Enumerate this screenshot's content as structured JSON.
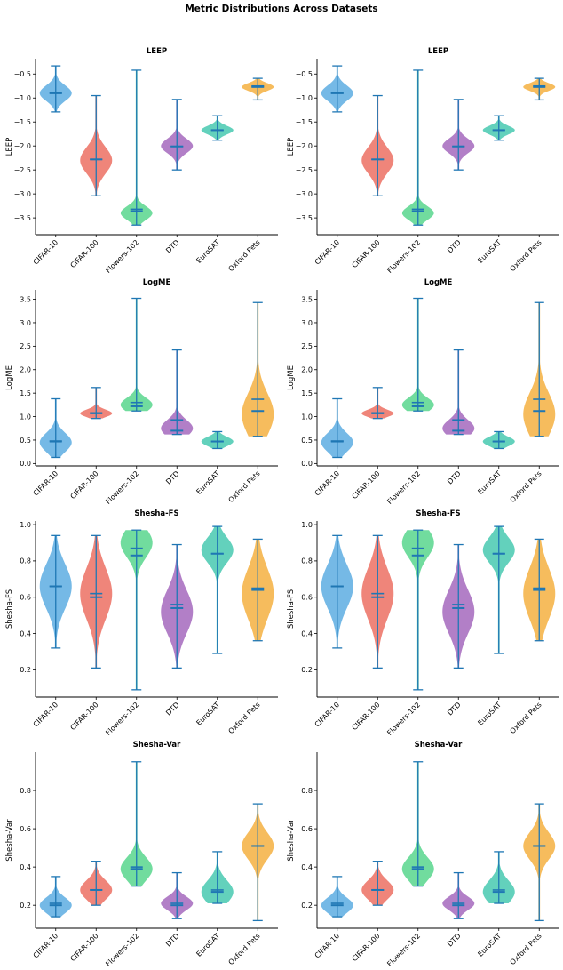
{
  "figure_title": "Metric Distributions Across Datasets",
  "colors": {
    "CIFAR-10": "#5dade2",
    "CIFAR-100": "#ec7063",
    "Flowers-102": "#58d68d",
    "DTD": "#a569bd",
    "EuroSAT": "#48c9b0",
    "Oxford Pets": "#f5b041",
    "line": "#1f77b4"
  },
  "chart_data": [
    {
      "type": "violin",
      "panel": "left",
      "title": "LEEP",
      "ylabel": "LEEP",
      "categories": [
        "CIFAR-10",
        "CIFAR-100",
        "Flowers-102",
        "DTD",
        "EuroSAT",
        "Oxford Pets"
      ],
      "ylim": [
        -3.85,
        -0.18
      ],
      "yticks": [
        -3.5,
        -3.0,
        -2.5,
        -2.0,
        -1.5,
        -1.0,
        -0.5
      ],
      "ytick_labels": [
        "−3.5",
        "−3.0",
        "−2.5",
        "−2.0",
        "−1.5",
        "−1.0",
        "−0.5"
      ],
      "series": [
        {
          "name": "CIFAR-10",
          "min": -1.29,
          "max": -0.33,
          "median": -0.9,
          "mean": -0.9,
          "mode": -0.9,
          "spread": 0.16
        },
        {
          "name": "CIFAR-100",
          "min": -3.04,
          "max": -0.95,
          "median": -2.28,
          "mean": -2.28,
          "mode": -2.3,
          "spread": 0.27
        },
        {
          "name": "Flowers-102",
          "min": -3.65,
          "max": -0.42,
          "median": -3.36,
          "mean": -3.32,
          "mode": -3.4,
          "spread": 0.14
        },
        {
          "name": "DTD",
          "min": -2.5,
          "max": -1.03,
          "median": -2.01,
          "mean": -2.01,
          "mode": -2.0,
          "spread": 0.15
        },
        {
          "name": "EuroSAT",
          "min": -1.88,
          "max": -1.37,
          "median": -1.67,
          "mean": -1.67,
          "mode": -1.67,
          "spread": 0.09
        },
        {
          "name": "Oxford Pets",
          "min": -1.04,
          "max": -0.59,
          "median": -0.77,
          "mean": -0.75,
          "mode": -0.77,
          "spread": 0.08
        }
      ]
    },
    {
      "type": "violin",
      "panel": "right",
      "title": "LEEP",
      "ylabel": "LEEP",
      "categories": [
        "CIFAR-10",
        "CIFAR-100",
        "Flowers-102",
        "DTD",
        "EuroSAT",
        "Oxford Pets"
      ],
      "ylim": [
        -3.85,
        -0.18
      ],
      "yticks": [
        -3.5,
        -3.0,
        -2.5,
        -2.0,
        -1.5,
        -1.0,
        -0.5
      ],
      "ytick_labels": [
        "−3.5",
        "−3.0",
        "−2.5",
        "−2.0",
        "−1.5",
        "−1.0",
        "−0.5"
      ],
      "series": [
        {
          "name": "CIFAR-10",
          "min": -1.29,
          "max": -0.33,
          "median": -0.9,
          "mean": -0.9,
          "mode": -0.9,
          "spread": 0.16
        },
        {
          "name": "CIFAR-100",
          "min": -3.04,
          "max": -0.95,
          "median": -2.28,
          "mean": -2.28,
          "mode": -2.3,
          "spread": 0.27
        },
        {
          "name": "Flowers-102",
          "min": -3.65,
          "max": -0.42,
          "median": -3.36,
          "mean": -3.32,
          "mode": -3.4,
          "spread": 0.14
        },
        {
          "name": "DTD",
          "min": -2.5,
          "max": -1.03,
          "median": -2.01,
          "mean": -2.01,
          "mode": -2.0,
          "spread": 0.15
        },
        {
          "name": "EuroSAT",
          "min": -1.88,
          "max": -1.37,
          "median": -1.67,
          "mean": -1.67,
          "mode": -1.67,
          "spread": 0.09
        },
        {
          "name": "Oxford Pets",
          "min": -1.04,
          "max": -0.59,
          "median": -0.77,
          "mean": -0.75,
          "mode": -0.77,
          "spread": 0.08
        }
      ]
    },
    {
      "type": "violin",
      "panel": "left",
      "title": "LogME",
      "ylabel": "LogME",
      "categories": [
        "CIFAR-10",
        "CIFAR-100",
        "Flowers-102",
        "DTD",
        "EuroSAT",
        "Oxford Pets"
      ],
      "ylim": [
        -0.05,
        3.7
      ],
      "yticks": [
        0.0,
        0.5,
        1.0,
        1.5,
        2.0,
        2.5,
        3.0,
        3.5
      ],
      "ytick_labels": [
        "0.0",
        "0.5",
        "1.0",
        "1.5",
        "2.0",
        "2.5",
        "3.0",
        "3.5"
      ],
      "series": [
        {
          "name": "CIFAR-10",
          "min": 0.13,
          "max": 1.38,
          "median": 0.47,
          "mean": 0.48,
          "mode": 0.45,
          "spread": 0.2
        },
        {
          "name": "CIFAR-100",
          "min": 0.96,
          "max": 1.62,
          "median": 1.07,
          "mean": 1.08,
          "mode": 1.07,
          "spread": 0.08
        },
        {
          "name": "Flowers-102",
          "min": 1.12,
          "max": 3.52,
          "median": 1.22,
          "mean": 1.3,
          "mode": 1.25,
          "spread": 0.15
        },
        {
          "name": "DTD",
          "min": 0.62,
          "max": 2.42,
          "median": 0.7,
          "mean": 0.93,
          "mode": 0.75,
          "spread": 0.18
        },
        {
          "name": "EuroSAT",
          "min": 0.32,
          "max": 0.68,
          "median": 0.47,
          "mean": 0.47,
          "mode": 0.47,
          "spread": 0.1
        },
        {
          "name": "Oxford Pets",
          "min": 0.58,
          "max": 3.43,
          "median": 1.12,
          "mean": 1.37,
          "mode": 1.05,
          "spread": 0.45
        }
      ]
    },
    {
      "type": "violin",
      "panel": "right",
      "title": "LogME",
      "ylabel": "LogME",
      "categories": [
        "CIFAR-10",
        "CIFAR-100",
        "Flowers-102",
        "DTD",
        "EuroSAT",
        "Oxford Pets"
      ],
      "ylim": [
        -0.05,
        3.7
      ],
      "yticks": [
        0.0,
        0.5,
        1.0,
        1.5,
        2.0,
        2.5,
        3.0,
        3.5
      ],
      "ytick_labels": [
        "0.0",
        "0.5",
        "1.0",
        "1.5",
        "2.0",
        "2.5",
        "3.0",
        "3.5"
      ],
      "series": [
        {
          "name": "CIFAR-10",
          "min": 0.13,
          "max": 1.38,
          "median": 0.47,
          "mean": 0.48,
          "mode": 0.45,
          "spread": 0.2
        },
        {
          "name": "CIFAR-100",
          "min": 0.96,
          "max": 1.62,
          "median": 1.07,
          "mean": 1.08,
          "mode": 1.07,
          "spread": 0.08
        },
        {
          "name": "Flowers-102",
          "min": 1.12,
          "max": 3.52,
          "median": 1.22,
          "mean": 1.3,
          "mode": 1.25,
          "spread": 0.15
        },
        {
          "name": "DTD",
          "min": 0.62,
          "max": 2.42,
          "median": 0.7,
          "mean": 0.93,
          "mode": 0.75,
          "spread": 0.18
        },
        {
          "name": "EuroSAT",
          "min": 0.32,
          "max": 0.68,
          "median": 0.47,
          "mean": 0.47,
          "mode": 0.47,
          "spread": 0.1
        },
        {
          "name": "Oxford Pets",
          "min": 0.58,
          "max": 3.43,
          "median": 1.12,
          "mean": 1.37,
          "mode": 1.05,
          "spread": 0.45
        }
      ]
    },
    {
      "type": "violin",
      "panel": "left",
      "title": "Shesha-FS",
      "ylabel": "Shesha-FS",
      "categories": [
        "CIFAR-10",
        "CIFAR-100",
        "Flowers-102",
        "DTD",
        "EuroSAT",
        "Oxford Pets"
      ],
      "ylim": [
        0.05,
        1.02
      ],
      "yticks": [
        0.2,
        0.4,
        0.6,
        0.8,
        1.0
      ],
      "ytick_labels": [
        "0.2",
        "0.4",
        "0.6",
        "0.8",
        "1.0"
      ],
      "series": [
        {
          "name": "CIFAR-10",
          "min": 0.32,
          "max": 0.94,
          "median": 0.66,
          "mean": 0.66,
          "mode": 0.66,
          "spread": 0.12
        },
        {
          "name": "CIFAR-100",
          "min": 0.21,
          "max": 0.94,
          "median": 0.6,
          "mean": 0.62,
          "mode": 0.62,
          "spread": 0.14
        },
        {
          "name": "Flowers-102",
          "min": 0.09,
          "max": 0.97,
          "median": 0.83,
          "mean": 0.87,
          "mode": 0.9,
          "spread": 0.08
        },
        {
          "name": "DTD",
          "min": 0.21,
          "max": 0.89,
          "median": 0.54,
          "mean": 0.56,
          "mode": 0.52,
          "spread": 0.12
        },
        {
          "name": "EuroSAT",
          "min": 0.29,
          "max": 0.99,
          "median": 0.84,
          "mean": 0.84,
          "mode": 0.86,
          "spread": 0.07
        },
        {
          "name": "Oxford Pets",
          "min": 0.36,
          "max": 0.92,
          "median": 0.64,
          "mean": 0.65,
          "mode": 0.62,
          "spread": 0.14
        }
      ]
    },
    {
      "type": "violin",
      "panel": "right",
      "title": "Shesha-FS",
      "ylabel": "Shesha-FS",
      "categories": [
        "CIFAR-10",
        "CIFAR-100",
        "Flowers-102",
        "DTD",
        "EuroSAT",
        "Oxford Pets"
      ],
      "ylim": [
        0.05,
        1.02
      ],
      "yticks": [
        0.2,
        0.4,
        0.6,
        0.8,
        1.0
      ],
      "ytick_labels": [
        "0.2",
        "0.4",
        "0.6",
        "0.8",
        "1.0"
      ],
      "series": [
        {
          "name": "CIFAR-10",
          "min": 0.32,
          "max": 0.94,
          "median": 0.66,
          "mean": 0.66,
          "mode": 0.66,
          "spread": 0.12
        },
        {
          "name": "CIFAR-100",
          "min": 0.21,
          "max": 0.94,
          "median": 0.6,
          "mean": 0.62,
          "mode": 0.62,
          "spread": 0.14
        },
        {
          "name": "Flowers-102",
          "min": 0.09,
          "max": 0.97,
          "median": 0.83,
          "mean": 0.87,
          "mode": 0.9,
          "spread": 0.08
        },
        {
          "name": "DTD",
          "min": 0.21,
          "max": 0.89,
          "median": 0.54,
          "mean": 0.56,
          "mode": 0.52,
          "spread": 0.12
        },
        {
          "name": "EuroSAT",
          "min": 0.29,
          "max": 0.99,
          "median": 0.84,
          "mean": 0.84,
          "mode": 0.86,
          "spread": 0.07
        },
        {
          "name": "Oxford Pets",
          "min": 0.36,
          "max": 0.92,
          "median": 0.64,
          "mean": 0.65,
          "mode": 0.62,
          "spread": 0.14
        }
      ]
    },
    {
      "type": "violin",
      "panel": "left",
      "title": "Shesha-Var",
      "ylabel": "Shesha-Var",
      "categories": [
        "CIFAR-10",
        "CIFAR-100",
        "Flowers-102",
        "DTD",
        "EuroSAT",
        "Oxford Pets"
      ],
      "ylim": [
        0.08,
        1.0
      ],
      "yticks": [
        0.2,
        0.4,
        0.6,
        0.8
      ],
      "ytick_labels": [
        "0.2",
        "0.4",
        "0.6",
        "0.8"
      ],
      "series": [
        {
          "name": "CIFAR-10",
          "min": 0.14,
          "max": 0.35,
          "median": 0.2,
          "mean": 0.21,
          "mode": 0.2,
          "spread": 0.04
        },
        {
          "name": "CIFAR-100",
          "min": 0.2,
          "max": 0.43,
          "median": 0.28,
          "mean": 0.28,
          "mode": 0.28,
          "spread": 0.05
        },
        {
          "name": "Flowers-102",
          "min": 0.3,
          "max": 0.95,
          "median": 0.39,
          "mean": 0.4,
          "mode": 0.39,
          "spread": 0.06
        },
        {
          "name": "DTD",
          "min": 0.13,
          "max": 0.37,
          "median": 0.2,
          "mean": 0.21,
          "mode": 0.21,
          "spread": 0.035
        },
        {
          "name": "EuroSAT",
          "min": 0.21,
          "max": 0.48,
          "median": 0.27,
          "mean": 0.28,
          "mode": 0.27,
          "spread": 0.06
        },
        {
          "name": "Oxford Pets",
          "min": 0.12,
          "max": 0.73,
          "median": 0.51,
          "mean": 0.51,
          "mode": 0.51,
          "spread": 0.07
        }
      ]
    },
    {
      "type": "violin",
      "panel": "right",
      "title": "Shesha-Var",
      "ylabel": "Shesha-Var",
      "categories": [
        "CIFAR-10",
        "CIFAR-100",
        "Flowers-102",
        "DTD",
        "EuroSAT",
        "Oxford Pets"
      ],
      "ylim": [
        0.08,
        1.0
      ],
      "yticks": [
        0.2,
        0.4,
        0.6,
        0.8
      ],
      "ytick_labels": [
        "0.2",
        "0.4",
        "0.6",
        "0.8"
      ],
      "series": [
        {
          "name": "CIFAR-10",
          "min": 0.14,
          "max": 0.35,
          "median": 0.2,
          "mean": 0.21,
          "mode": 0.2,
          "spread": 0.04
        },
        {
          "name": "CIFAR-100",
          "min": 0.2,
          "max": 0.43,
          "median": 0.28,
          "mean": 0.28,
          "mode": 0.28,
          "spread": 0.05
        },
        {
          "name": "Flowers-102",
          "min": 0.3,
          "max": 0.95,
          "median": 0.39,
          "mean": 0.4,
          "mode": 0.39,
          "spread": 0.06
        },
        {
          "name": "DTD",
          "min": 0.13,
          "max": 0.37,
          "median": 0.2,
          "mean": 0.21,
          "mode": 0.21,
          "spread": 0.035
        },
        {
          "name": "EuroSAT",
          "min": 0.21,
          "max": 0.48,
          "median": 0.27,
          "mean": 0.28,
          "mode": 0.27,
          "spread": 0.06
        },
        {
          "name": "Oxford Pets",
          "min": 0.12,
          "max": 0.73,
          "median": 0.51,
          "mean": 0.51,
          "mode": 0.51,
          "spread": 0.07
        }
      ]
    }
  ]
}
